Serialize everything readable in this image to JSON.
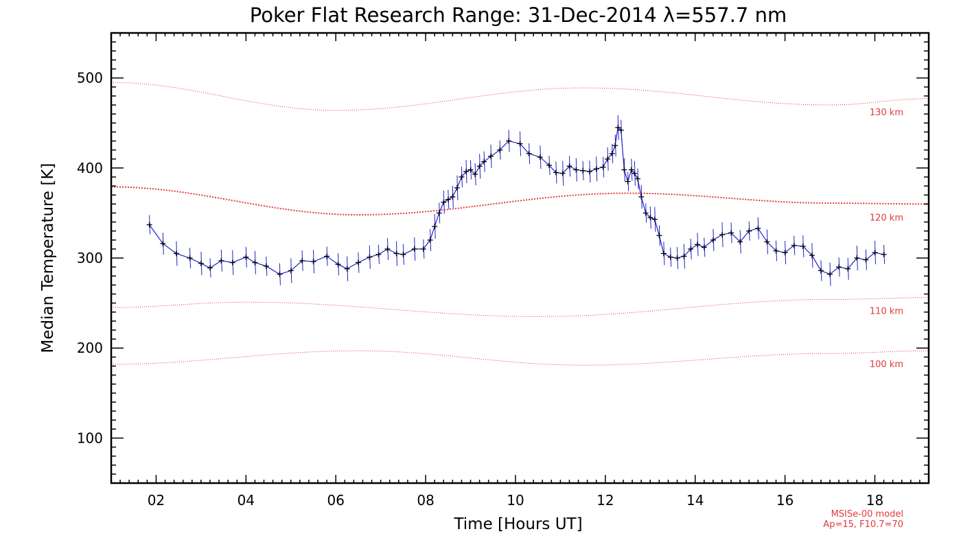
{
  "chart_data": {
    "type": "line",
    "title": "Poker Flat Research Range: 31-Dec-2014 λ=557.7 nm",
    "xlabel": "Time [Hours UT]",
    "ylabel": "Median Temperature [K]",
    "xlim": [
      1.0,
      19.2
    ],
    "ylim": [
      50,
      550
    ],
    "x_ticks": [
      2,
      4,
      6,
      8,
      10,
      12,
      14,
      16,
      18
    ],
    "x_tick_labels": [
      "02",
      "04",
      "06",
      "08",
      "10",
      "12",
      "14",
      "16",
      "18"
    ],
    "y_ticks": [
      100,
      200,
      300,
      400,
      500
    ],
    "y_tick_labels": [
      "100",
      "200",
      "300",
      "400",
      "500"
    ],
    "grid": false,
    "colors": {
      "series": "#1f1fc8",
      "marker": "#000000",
      "model": "#e0383d"
    },
    "series": [
      {
        "x": [
          1.85,
          2.15,
          2.45,
          2.75,
          3.0,
          3.2,
          3.45,
          3.7,
          4.0,
          4.2,
          4.45,
          4.75,
          5.0,
          5.25,
          5.5,
          5.8,
          6.05,
          6.25,
          6.5,
          6.75,
          6.95,
          7.15,
          7.35,
          7.5,
          7.75,
          7.95,
          8.1,
          8.2,
          8.3,
          8.4,
          8.5,
          8.6,
          8.7,
          8.8,
          8.9,
          9.0,
          9.1,
          9.2,
          9.3,
          9.45,
          9.65,
          9.85,
          10.1,
          10.3,
          10.55,
          10.75,
          10.9,
          11.05,
          11.2,
          11.35,
          11.5,
          11.65,
          11.8,
          11.95,
          12.05,
          12.15,
          12.22,
          12.28,
          12.35,
          12.42,
          12.5,
          12.58,
          12.65,
          12.72,
          12.8,
          12.9,
          13.0,
          13.1,
          13.2,
          13.3,
          13.45,
          13.6,
          13.75,
          13.9,
          14.05,
          14.2,
          14.4,
          14.6,
          14.8,
          15.0,
          15.2,
          15.4,
          15.6,
          15.8,
          16.0,
          16.2,
          16.4,
          16.6,
          16.8,
          17.0,
          17.2,
          17.4,
          17.6,
          17.8,
          18.0,
          18.2
        ],
        "values": [
          337,
          316,
          305,
          300,
          294,
          289,
          297,
          295,
          301,
          295,
          291,
          282,
          286,
          297,
          296,
          302,
          293,
          288,
          295,
          301,
          304,
          310,
          305,
          304,
          310,
          310,
          320,
          335,
          350,
          362,
          365,
          368,
          378,
          390,
          396,
          398,
          393,
          402,
          407,
          413,
          420,
          430,
          427,
          416,
          412,
          403,
          395,
          394,
          402,
          398,
          397,
          396,
          399,
          401,
          410,
          416,
          425,
          445,
          442,
          398,
          385,
          398,
          394,
          388,
          368,
          350,
          345,
          343,
          325,
          305,
          301,
          300,
          302,
          310,
          315,
          312,
          320,
          326,
          328,
          318,
          330,
          333,
          318,
          308,
          306,
          314,
          313,
          303,
          286,
          282,
          290,
          288,
          300,
          298,
          306,
          304
        ]
      }
    ],
    "model_lines": [
      {
        "label": "130 km",
        "x": [
          1.0,
          6.0,
          11.5,
          17.0,
          19.2
        ],
        "values": [
          495,
          464,
          489,
          470,
          477
        ]
      },
      {
        "label": "120 km",
        "x": [
          1.0,
          6.5,
          12.5,
          17.0,
          19.2
        ],
        "values": [
          379,
          348,
          372,
          361,
          360
        ]
      },
      {
        "label": "110 km",
        "x": [
          1.0,
          4.0,
          10.5,
          17.0,
          19.2
        ],
        "values": [
          245,
          251,
          235,
          254,
          256
        ]
      },
      {
        "label": "100 km",
        "x": [
          1.0,
          6.5,
          11.5,
          17.0,
          19.2
        ],
        "values": [
          182,
          197,
          181,
          194,
          197
        ]
      }
    ],
    "model_note": [
      "MSISe-00 model",
      "Ap=15, F10.7=70"
    ]
  }
}
